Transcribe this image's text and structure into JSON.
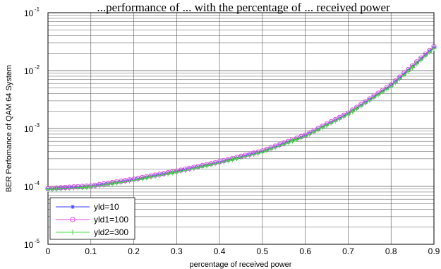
{
  "chart_data": {
    "type": "line",
    "title": "...performance of ... with the percentage of ... received power",
    "xlabel": "percentage of received power",
    "ylabel": "BER Perfomance of QAM 64 System",
    "xlim": [
      0,
      0.9
    ],
    "ylim_log10": [
      -5,
      -1
    ],
    "y_scale": "log",
    "x_ticks": [
      "0",
      "0.1",
      "0.2",
      "0.3",
      "0.4",
      "0.5",
      "0.6",
      "0.7",
      "0.8",
      "0.9"
    ],
    "y_ticks": [
      {
        "base": "10",
        "exp": "-5"
      },
      {
        "base": "10",
        "exp": "-4"
      },
      {
        "base": "10",
        "exp": "-3"
      },
      {
        "base": "10",
        "exp": "-2"
      },
      {
        "base": "10",
        "exp": "-1"
      }
    ],
    "grid": true,
    "legend_position": "bottom-left",
    "x": [
      0,
      0.1,
      0.2,
      0.3,
      0.4,
      0.5,
      0.6,
      0.7,
      0.8,
      0.9
    ],
    "series": [
      {
        "name": "yld=10",
        "color": "#3b3bff",
        "marker": "star",
        "values": [
          9e-05,
          0.0001,
          0.00013,
          0.00018,
          0.00026,
          0.0004,
          0.00075,
          0.0018,
          0.0055,
          0.025
        ]
      },
      {
        "name": "yld1=100",
        "color": "#e040e0",
        "marker": "circle",
        "values": [
          9.2e-05,
          0.000102,
          0.000133,
          0.000184,
          0.000266,
          0.00041,
          0.00077,
          0.00185,
          0.0057,
          0.026
        ]
      },
      {
        "name": "yld2=300",
        "color": "#44dd44",
        "marker": "plus",
        "values": [
          8.8e-05,
          9.8e-05,
          0.000127,
          0.000176,
          0.000254,
          0.00039,
          0.00073,
          0.00175,
          0.0053,
          0.024
        ]
      }
    ]
  }
}
